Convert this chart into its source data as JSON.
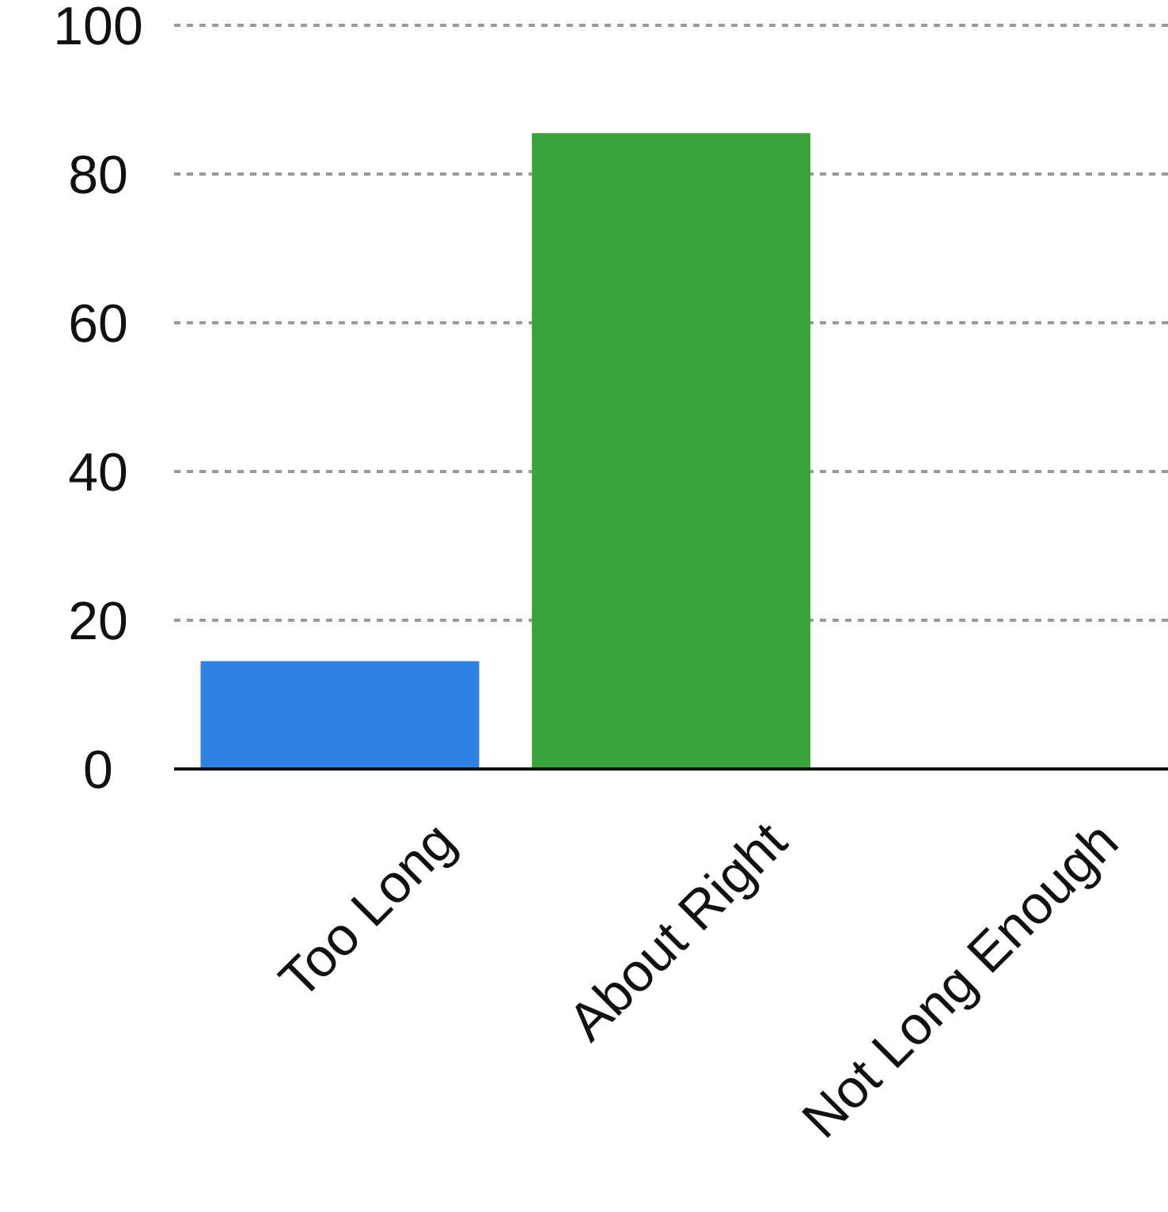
{
  "chart_data": {
    "type": "bar",
    "categories": [
      "Too Long",
      "About Right",
      "Not Long Enough"
    ],
    "values": [
      14.5,
      85.5,
      0
    ],
    "colors": [
      "#2f82e2",
      "#3aa43c",
      "#3aa43c"
    ],
    "ylim": [
      0,
      100
    ],
    "yticks": [
      0,
      20,
      40,
      60,
      80,
      100
    ],
    "grid": "y"
  }
}
